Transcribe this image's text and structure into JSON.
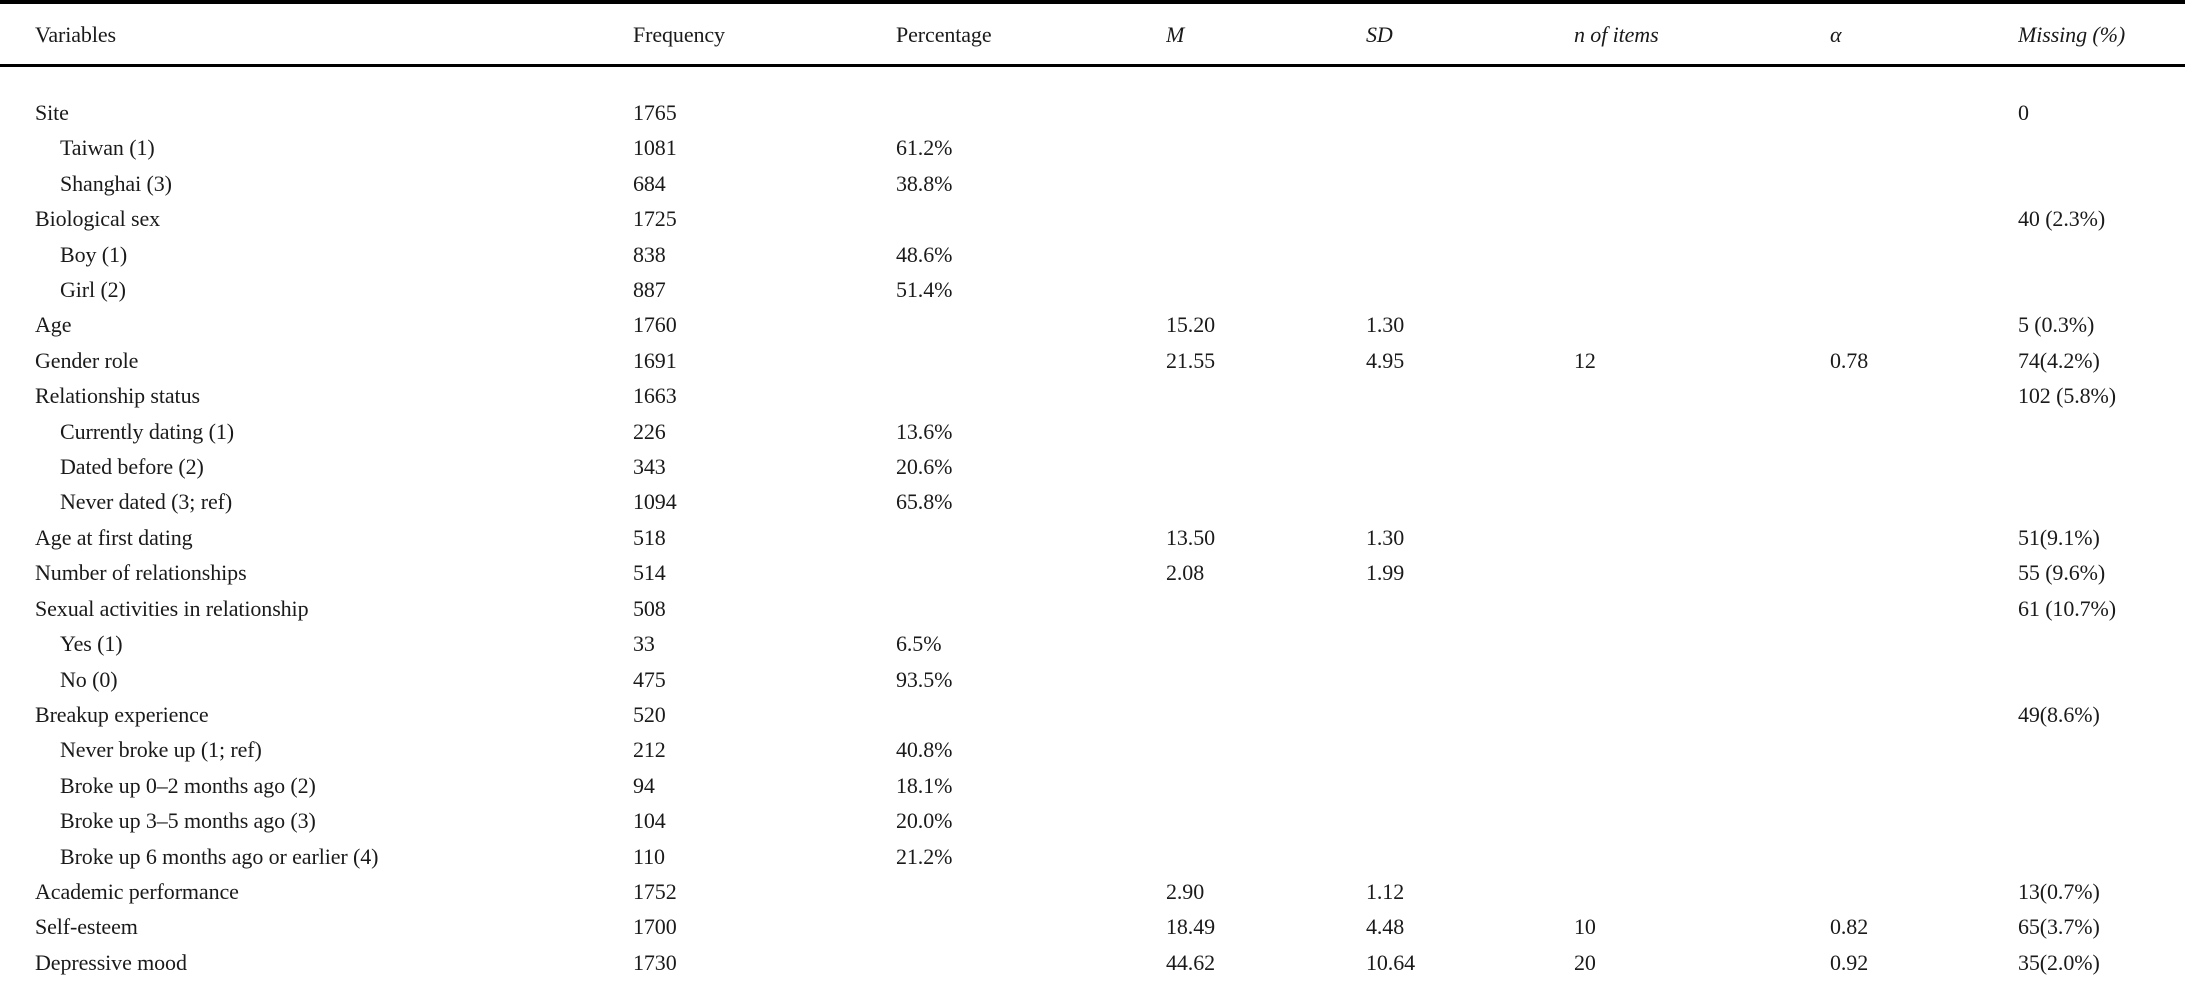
{
  "table": {
    "columns": [
      {
        "label": "Variables"
      },
      {
        "label": "Frequency"
      },
      {
        "label": "Percentage"
      },
      {
        "label": "M"
      },
      {
        "label": "SD"
      },
      {
        "label": "n of items"
      },
      {
        "label": "α"
      },
      {
        "label": "Missing (%)"
      }
    ],
    "rows": [
      {
        "label": "Site",
        "indent": 0,
        "frequency": "1765",
        "percentage": "",
        "m": "",
        "sd": "",
        "n_items": "",
        "alpha": "",
        "missing": "0"
      },
      {
        "label": "Taiwan (1)",
        "indent": 1,
        "frequency": "1081",
        "percentage": "61.2%",
        "m": "",
        "sd": "",
        "n_items": "",
        "alpha": "",
        "missing": ""
      },
      {
        "label": "Shanghai (3)",
        "indent": 1,
        "frequency": "684",
        "percentage": "38.8%",
        "m": "",
        "sd": "",
        "n_items": "",
        "alpha": "",
        "missing": ""
      },
      {
        "label": "Biological sex",
        "indent": 0,
        "frequency": "1725",
        "percentage": "",
        "m": "",
        "sd": "",
        "n_items": "",
        "alpha": "",
        "missing": "40 (2.3%)"
      },
      {
        "label": "Boy (1)",
        "indent": 1,
        "frequency": "838",
        "percentage": "48.6%",
        "m": "",
        "sd": "",
        "n_items": "",
        "alpha": "",
        "missing": ""
      },
      {
        "label": "Girl (2)",
        "indent": 1,
        "frequency": "887",
        "percentage": "51.4%",
        "m": "",
        "sd": "",
        "n_items": "",
        "alpha": "",
        "missing": ""
      },
      {
        "label": "Age",
        "indent": 0,
        "frequency": "1760",
        "percentage": "",
        "m": "15.20",
        "sd": "1.30",
        "n_items": "",
        "alpha": "",
        "missing": "5 (0.3%)"
      },
      {
        "label": "Gender role",
        "indent": 0,
        "frequency": "1691",
        "percentage": "",
        "m": "21.55",
        "sd": "4.95",
        "n_items": "12",
        "alpha": "0.78",
        "missing": "74(4.2%)"
      },
      {
        "label": "Relationship status",
        "indent": 0,
        "frequency": "1663",
        "percentage": "",
        "m": "",
        "sd": "",
        "n_items": "",
        "alpha": "",
        "missing": "102 (5.8%)"
      },
      {
        "label": "Currently dating (1)",
        "indent": 1,
        "frequency": "226",
        "percentage": "13.6%",
        "m": "",
        "sd": "",
        "n_items": "",
        "alpha": "",
        "missing": ""
      },
      {
        "label": "Dated before (2)",
        "indent": 1,
        "frequency": "343",
        "percentage": "20.6%",
        "m": "",
        "sd": "",
        "n_items": "",
        "alpha": "",
        "missing": ""
      },
      {
        "label": "Never dated (3; ref)",
        "indent": 1,
        "frequency": "1094",
        "percentage": "65.8%",
        "m": "",
        "sd": "",
        "n_items": "",
        "alpha": "",
        "missing": ""
      },
      {
        "label": "Age at first dating",
        "indent": 0,
        "frequency": "518",
        "percentage": "",
        "m": "13.50",
        "sd": "1.30",
        "n_items": "",
        "alpha": "",
        "missing": "51(9.1%)"
      },
      {
        "label": "Number of relationships",
        "indent": 0,
        "frequency": "514",
        "percentage": "",
        "m": "2.08",
        "sd": "1.99",
        "n_items": "",
        "alpha": "",
        "missing": "55 (9.6%)"
      },
      {
        "label": "Sexual activities in relationship",
        "indent": 0,
        "frequency": "508",
        "percentage": "",
        "m": "",
        "sd": "",
        "n_items": "",
        "alpha": "",
        "missing": "61 (10.7%)"
      },
      {
        "label": "Yes (1)",
        "indent": 1,
        "frequency": "33",
        "percentage": "6.5%",
        "m": "",
        "sd": "",
        "n_items": "",
        "alpha": "",
        "missing": ""
      },
      {
        "label": "No (0)",
        "indent": 1,
        "frequency": "475",
        "percentage": "93.5%",
        "m": "",
        "sd": "",
        "n_items": "",
        "alpha": "",
        "missing": ""
      },
      {
        "label": "Breakup experience",
        "indent": 0,
        "frequency": "520",
        "percentage": "",
        "m": "",
        "sd": "",
        "n_items": "",
        "alpha": "",
        "missing": "49(8.6%)"
      },
      {
        "label": "Never broke up (1; ref)",
        "indent": 1,
        "frequency": "212",
        "percentage": "40.8%",
        "m": "",
        "sd": "",
        "n_items": "",
        "alpha": "",
        "missing": ""
      },
      {
        "label": "Broke up 0–2 months ago (2)",
        "indent": 1,
        "frequency": "94",
        "percentage": "18.1%",
        "m": "",
        "sd": "",
        "n_items": "",
        "alpha": "",
        "missing": ""
      },
      {
        "label": "Broke up 3–5 months ago (3)",
        "indent": 1,
        "frequency": "104",
        "percentage": "20.0%",
        "m": "",
        "sd": "",
        "n_items": "",
        "alpha": "",
        "missing": ""
      },
      {
        "label": "Broke up 6 months ago or earlier (4)",
        "indent": 1,
        "frequency": "110",
        "percentage": "21.2%",
        "m": "",
        "sd": "",
        "n_items": "",
        "alpha": "",
        "missing": ""
      },
      {
        "label": "Academic performance",
        "indent": 0,
        "frequency": "1752",
        "percentage": "",
        "m": "2.90",
        "sd": "1.12",
        "n_items": "",
        "alpha": "",
        "missing": "13(0.7%)"
      },
      {
        "label": "Self-esteem",
        "indent": 0,
        "frequency": "1700",
        "percentage": "",
        "m": "18.49",
        "sd": "4.48",
        "n_items": "10",
        "alpha": "0.82",
        "missing": "65(3.7%)"
      },
      {
        "label": "Depressive mood",
        "indent": 0,
        "frequency": "1730",
        "percentage": "",
        "m": "44.62",
        "sd": "10.64",
        "n_items": "20",
        "alpha": "0.92",
        "missing": "35(2.0%)"
      }
    ]
  }
}
